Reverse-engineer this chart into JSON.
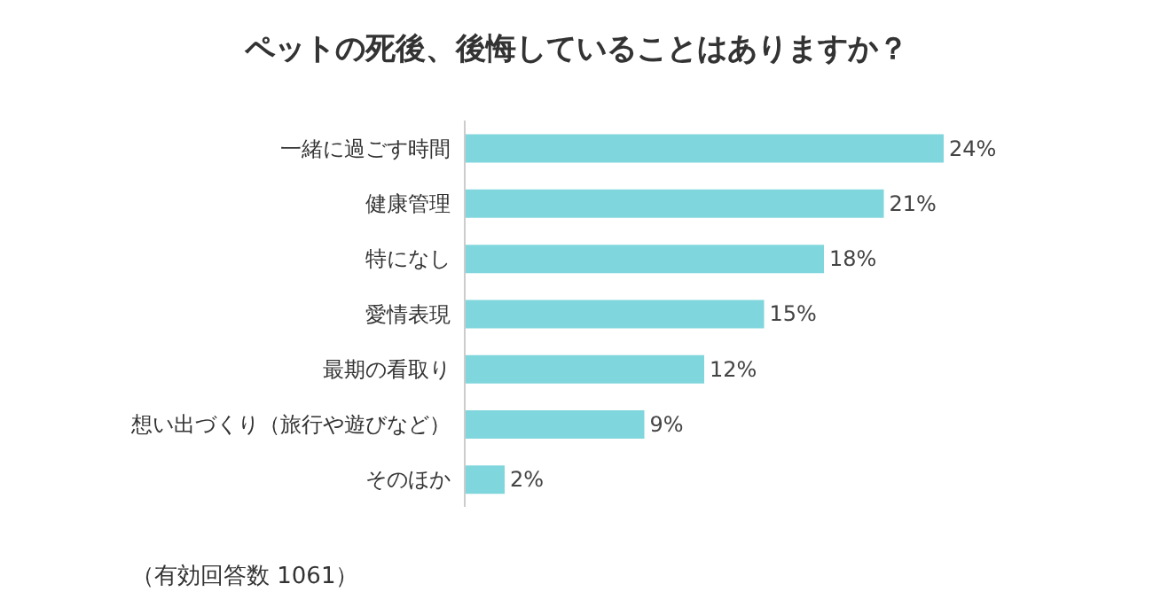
{
  "chart_data": {
    "type": "bar",
    "orientation": "horizontal",
    "title": "ペットの死後、後悔していることはありますか？",
    "categories": [
      "一緒に過ごす時間",
      "健康管理",
      "特になし",
      "愛情表現",
      "最期の看取り",
      "想い出づくり（旅行や遊びなど）",
      "そのほか"
    ],
    "values": [
      24,
      21,
      18,
      15,
      12,
      9,
      2
    ],
    "value_labels": [
      "24%",
      "21%",
      "18%",
      "15%",
      "12%",
      "9%",
      "2%"
    ],
    "color": "#7fd6dc",
    "grid": false,
    "legend": false,
    "annotations": [
      "（有効回答数 1061）"
    ]
  }
}
